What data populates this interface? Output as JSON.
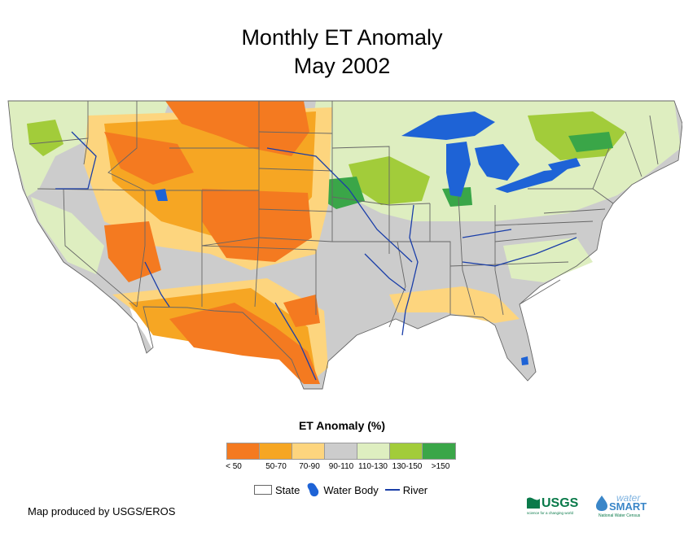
{
  "title": {
    "line1": "Monthly ET Anomaly",
    "line2": "May 2002"
  },
  "legend": {
    "title": "ET Anomaly (%)",
    "classes": [
      {
        "label": "< 50",
        "color": "#f47a20"
      },
      {
        "label": "50-70",
        "color": "#f6a623"
      },
      {
        "label": "70-90",
        "color": "#fdd57e"
      },
      {
        "label": "90-110",
        "color": "#cccccc"
      },
      {
        "label": "110-130",
        "color": "#deeec0"
      },
      {
        "label": "130-150",
        "color": "#a2cc3a"
      },
      {
        "label": ">150",
        "color": "#3aa648"
      }
    ]
  },
  "symbols": {
    "state": "State",
    "water_body": "Water Body",
    "river": "River"
  },
  "credit": "Map produced by USGS/EROS",
  "logos": {
    "usgs": "USGS",
    "usgs_tagline": "science for a changing world",
    "water": "water",
    "smart": "SMART",
    "census": "National Water Census"
  },
  "colors": {
    "water_body": "#1e63d6",
    "river": "#1a3ea8",
    "state_line": "#666666",
    "usgs_green": "#0a7a4a",
    "watersmart_blue": "#3a86c8"
  }
}
